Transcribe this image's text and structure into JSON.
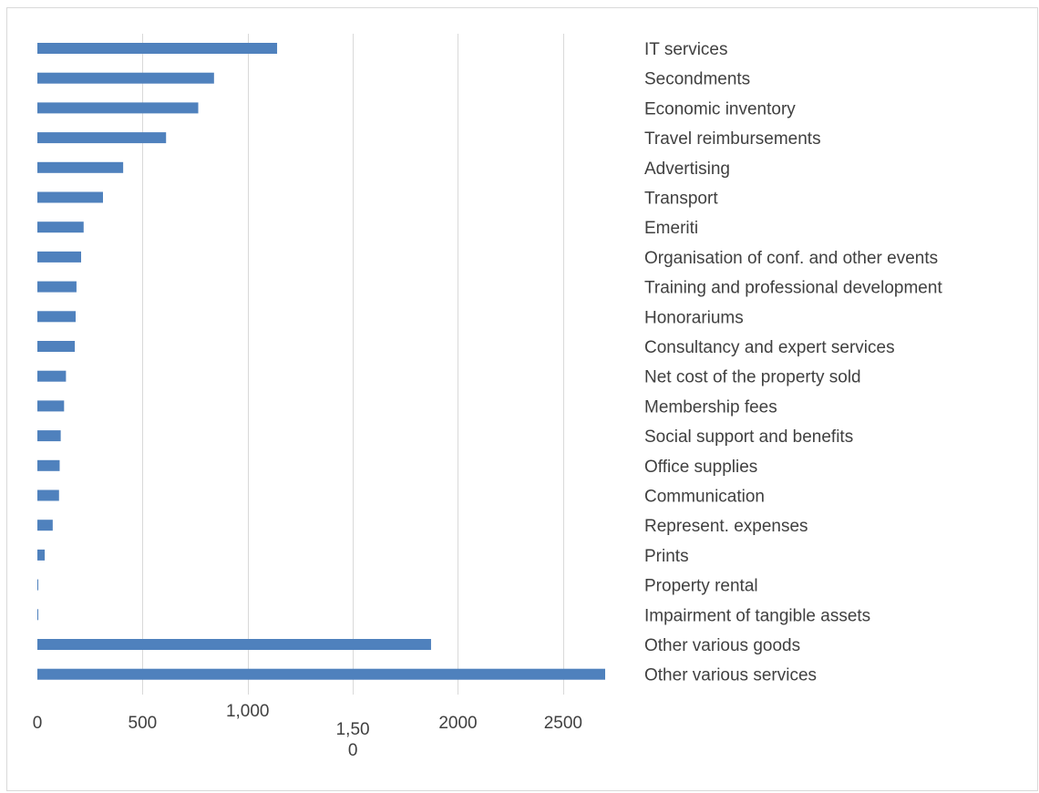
{
  "chart_data": {
    "type": "bar",
    "orientation": "horizontal",
    "categories": [
      "IT services",
      "Secondments",
      "Economic inventory",
      "Travel reimbursements",
      "Advertising",
      "Transport",
      "Emeriti",
      "Organisation of conf. and other events",
      "Training and professional development",
      "Honorariums",
      "Consultancy and expert services",
      "Net cost of the property sold",
      "Membership fees",
      "Social support and benefits",
      "Office supplies",
      "Communication",
      "Represent. expenses",
      "Prints",
      "Property rental",
      "Impairment of tangible assets",
      "Other various goods",
      "Other various services"
    ],
    "values": [
      1140,
      840,
      765,
      612,
      408,
      312,
      220,
      208,
      186,
      182,
      178,
      136,
      127,
      111,
      106,
      103,
      73,
      35,
      4,
      3,
      1872,
      2700
    ],
    "xlim": [
      0,
      2700
    ],
    "x_ticks": [
      {
        "value": 0,
        "label": "0"
      },
      {
        "value": 500,
        "label": "500"
      },
      {
        "value": 1000,
        "label": "1,000"
      },
      {
        "value": 1500,
        "label": "1,50\n0"
      },
      {
        "value": 2000,
        "label": "2000"
      },
      {
        "value": 2500,
        "label": "2500"
      }
    ],
    "gridlines": [
      500,
      1000,
      1500,
      2000,
      2500
    ],
    "grid": true,
    "legend": "none",
    "title": "",
    "xlabel": "",
    "ylabel": "",
    "bar_color": "#4f81bd",
    "grid_color": "#d9d9d9",
    "text_color": "#404040"
  }
}
